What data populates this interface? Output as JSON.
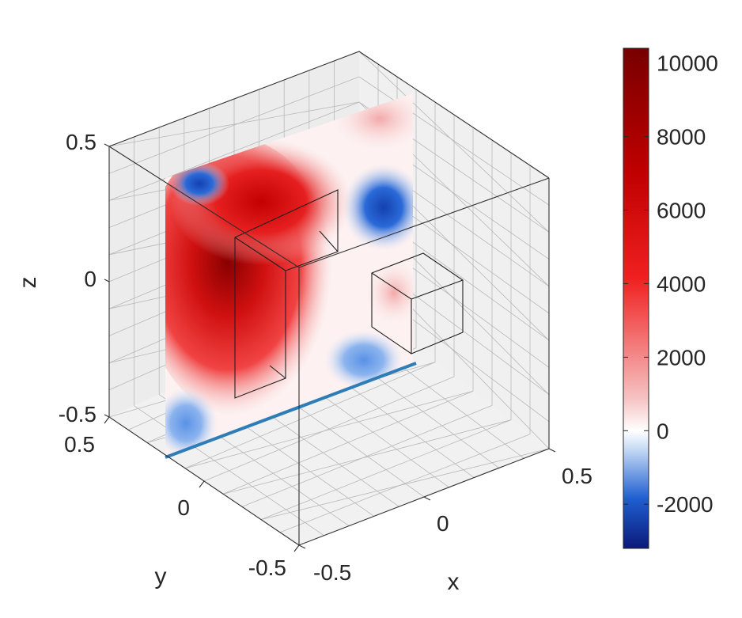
{
  "chart_data": {
    "type": "heatmap",
    "title": "",
    "xlabel": "x",
    "ylabel": "y",
    "zlabel": "z",
    "xlim": [
      -0.5,
      0.5
    ],
    "ylim": [
      -0.5,
      0.5
    ],
    "zlim": [
      -0.5,
      0.5
    ],
    "x_ticks": [
      "-0.5",
      "0",
      "0.5"
    ],
    "y_ticks": [
      "-0.5",
      "0",
      "0.5"
    ],
    "z_ticks": [
      "-0.5",
      "0",
      "0.5"
    ],
    "grid": true,
    "colorbar": {
      "min": -3200,
      "max": 10400,
      "ticks": [
        "10000",
        "8000",
        "6000",
        "4000",
        "2000",
        "0",
        "-2000"
      ],
      "tick_values": [
        10000,
        8000,
        6000,
        4000,
        2000,
        0,
        -2000
      ],
      "colors": {
        "min": "#0a1a7a",
        "neg_mid": "#1f5fd0",
        "neg_light": "#c8dcf5",
        "zero": "#ffffff",
        "pos_light": "#f6c2c2",
        "pos_mid": "#f02020",
        "max": "#780000"
      }
    },
    "slice_plane": "x = 0",
    "slice_features": [
      {
        "kind": "max",
        "y": 0.1,
        "z": 0.05,
        "value": 10000
      },
      {
        "kind": "max",
        "y": 0.0,
        "z": 0.35,
        "value": 6000
      },
      {
        "kind": "min",
        "y": -0.25,
        "z": 0.25,
        "value": -2800
      },
      {
        "kind": "min",
        "y": 0.3,
        "z": 0.4,
        "value": -1500
      },
      {
        "kind": "min",
        "y": -0.2,
        "z": -0.3,
        "value": -1200
      },
      {
        "kind": "min",
        "y": 0.45,
        "z": -0.45,
        "value": -800
      },
      {
        "kind": "max",
        "y": -0.25,
        "z": -0.05,
        "value": 1500
      }
    ]
  }
}
